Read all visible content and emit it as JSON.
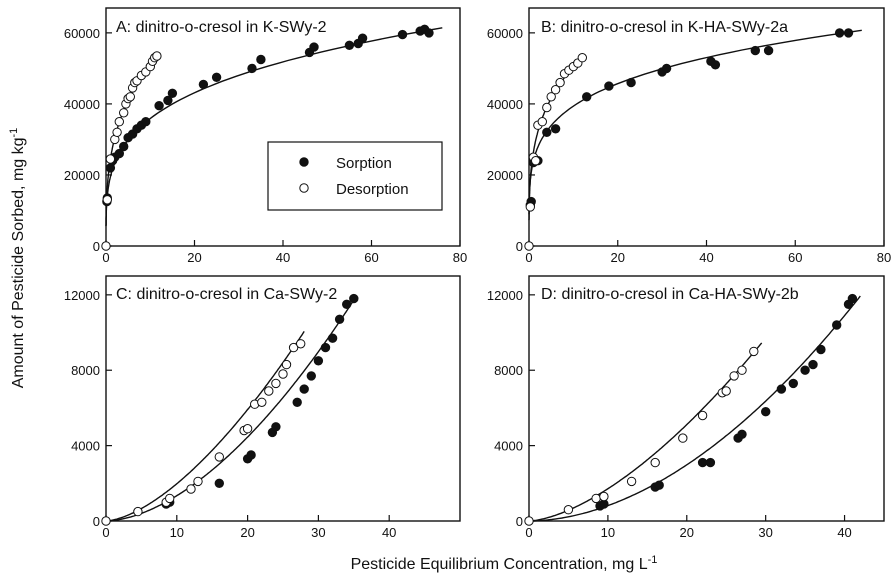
{
  "figure": {
    "ylabel": "Amount of Pesticide Sorbed, mg kg",
    "ylabel_sup": "-1",
    "xlabel": "Pesticide Equilibrium Concentration, mg L",
    "xlabel_sup": "-1"
  },
  "legend": {
    "sorption_label": "Sorption",
    "desorption_label": "Desorption"
  },
  "chart_data": [
    {
      "type": "scatter",
      "title": "A: dinitro-o-cresol in K-SWy-2",
      "xlim": [
        0,
        80
      ],
      "ylim": [
        0,
        67000
      ],
      "xticks": [
        0,
        20,
        40,
        60,
        80
      ],
      "yticks": [
        0,
        20000,
        40000,
        60000
      ],
      "series": [
        {
          "name": "Sorption",
          "marker": "filled",
          "x": [
            0.2,
            0.3,
            1,
            1.5,
            2,
            3,
            4,
            5,
            6,
            7,
            8,
            9,
            12,
            14,
            15,
            22,
            25,
            33,
            35,
            46,
            47,
            55,
            57,
            58,
            67,
            71,
            72,
            73
          ],
          "y": [
            12500,
            13500,
            22000,
            24000,
            25000,
            26000,
            28000,
            30500,
            31500,
            33000,
            34000,
            35000,
            39500,
            41000,
            43000,
            45500,
            47500,
            50000,
            52500,
            54500,
            56000,
            56500,
            57000,
            58500,
            59500,
            60500,
            61000,
            60000
          ]
        },
        {
          "name": "Desorption",
          "marker": "open",
          "x": [
            0,
            0.3,
            1,
            2,
            2.5,
            3,
            4,
            4.5,
            5,
            5.5,
            6,
            6.5,
            7,
            8,
            9,
            10,
            10.5,
            11,
            11.5
          ],
          "y": [
            0,
            13000,
            24500,
            30000,
            32000,
            35000,
            37500,
            40000,
            41500,
            42000,
            44500,
            46000,
            46500,
            48000,
            49000,
            50500,
            52000,
            53000,
            53500
          ]
        }
      ],
      "fits": [
        {
          "series": "Sorption",
          "form": "freundlich",
          "K": 19500,
          "n": 0.265,
          "x": [
            0.01,
            76
          ]
        },
        {
          "series": "Desorption",
          "form": "freundlich",
          "K": 24500,
          "n": 0.32,
          "x": [
            0.01,
            12
          ]
        }
      ]
    },
    {
      "type": "scatter",
      "title": "B: dinitro-o-cresol in K-HA-SWy-2a",
      "xlim": [
        0,
        80
      ],
      "ylim": [
        0,
        67000
      ],
      "xticks": [
        0,
        20,
        40,
        60,
        80
      ],
      "yticks": [
        0,
        20000,
        40000,
        60000
      ],
      "series": [
        {
          "name": "Sorption",
          "marker": "filled",
          "x": [
            0.3,
            0.5,
            1,
            2,
            4,
            6,
            13,
            18,
            23,
            30,
            31,
            41,
            42,
            51,
            54,
            70,
            72
          ],
          "y": [
            11500,
            12500,
            23500,
            24000,
            32000,
            33000,
            42000,
            45000,
            46000,
            49000,
            50000,
            52000,
            51000,
            55000,
            55000,
            60000,
            60000
          ]
        },
        {
          "name": "Desorption",
          "marker": "open",
          "x": [
            0,
            0.3,
            1,
            1.5,
            2,
            3,
            4,
            5,
            6,
            7,
            8,
            9,
            10,
            11,
            12
          ],
          "y": [
            0,
            11000,
            25000,
            24000,
            34000,
            35000,
            39000,
            42000,
            44000,
            46000,
            48500,
            49500,
            50500,
            51500,
            53000
          ]
        }
      ],
      "fits": [
        {
          "series": "Sorption",
          "form": "freundlich",
          "K": 24000,
          "n": 0.215,
          "x": [
            0.01,
            75
          ]
        },
        {
          "series": "Desorption",
          "form": "freundlich",
          "K": 26500,
          "n": 0.28,
          "x": [
            0.01,
            12.5
          ]
        }
      ]
    },
    {
      "type": "scatter",
      "title": "C: dinitro-o-cresol in Ca-SWy-2",
      "xlim": [
        0,
        50
      ],
      "ylim": [
        0,
        13000
      ],
      "xticks": [
        0,
        10,
        20,
        30,
        40
      ],
      "yticks": [
        0,
        4000,
        8000,
        12000
      ],
      "series": [
        {
          "name": "Sorption",
          "marker": "filled",
          "x": [
            8.5,
            9,
            16,
            20,
            20.5,
            23.5,
            24,
            27,
            28,
            29,
            30,
            31,
            32,
            33,
            34,
            35
          ],
          "y": [
            900,
            1000,
            2000,
            3300,
            3500,
            4700,
            5000,
            6300,
            7000,
            7700,
            8500,
            9200,
            9700,
            10700,
            11500,
            11800
          ]
        },
        {
          "name": "Desorption",
          "marker": "open",
          "x": [
            0,
            4.5,
            8.5,
            9,
            12,
            13,
            16,
            19.5,
            20,
            21,
            22,
            23,
            24,
            25,
            25.5,
            26.5,
            27.5
          ],
          "y": [
            0,
            500,
            1000,
            1200,
            1700,
            2100,
            3400,
            4800,
            4900,
            6200,
            6300,
            6900,
            7300,
            7800,
            8300,
            9200,
            9400
          ]
        }
      ],
      "fits": [
        {
          "series": "Sorption",
          "form": "power",
          "a": 25,
          "b": 1.73,
          "x": [
            0,
            35
          ]
        },
        {
          "series": "Desorption",
          "form": "power",
          "a": 52,
          "b": 1.58,
          "x": [
            0,
            28
          ]
        }
      ]
    },
    {
      "type": "scatter",
      "title": "D: dinitro-o-cresol in Ca-HA-SWy-2b",
      "xlim": [
        0,
        45
      ],
      "ylim": [
        0,
        13000
      ],
      "xticks": [
        0,
        10,
        20,
        30,
        40
      ],
      "yticks": [
        0,
        4000,
        8000,
        12000
      ],
      "series": [
        {
          "name": "Sorption",
          "marker": "filled",
          "x": [
            9,
            9.5,
            16,
            16.5,
            22,
            23,
            26.5,
            27,
            30,
            32,
            33.5,
            35,
            36,
            37,
            39,
            40.5,
            41
          ],
          "y": [
            800,
            900,
            1800,
            1900,
            3100,
            3100,
            4400,
            4600,
            5800,
            7000,
            7300,
            8000,
            8300,
            9100,
            10400,
            11500,
            11800
          ]
        },
        {
          "name": "Desorption",
          "marker": "open",
          "x": [
            0,
            5,
            8.5,
            9.5,
            13,
            16,
            19.5,
            22,
            24.5,
            25,
            26,
            27,
            28.5
          ],
          "y": [
            0,
            600,
            1200,
            1300,
            2100,
            3100,
            4400,
            5600,
            6800,
            6900,
            7700,
            8000,
            9000
          ]
        }
      ],
      "fits": [
        {
          "series": "Sorption",
          "form": "power",
          "a": 11,
          "b": 1.87,
          "x": [
            0,
            42
          ]
        },
        {
          "series": "Desorption",
          "form": "power",
          "a": 45,
          "b": 1.58,
          "x": [
            0,
            29.5
          ]
        }
      ]
    }
  ]
}
